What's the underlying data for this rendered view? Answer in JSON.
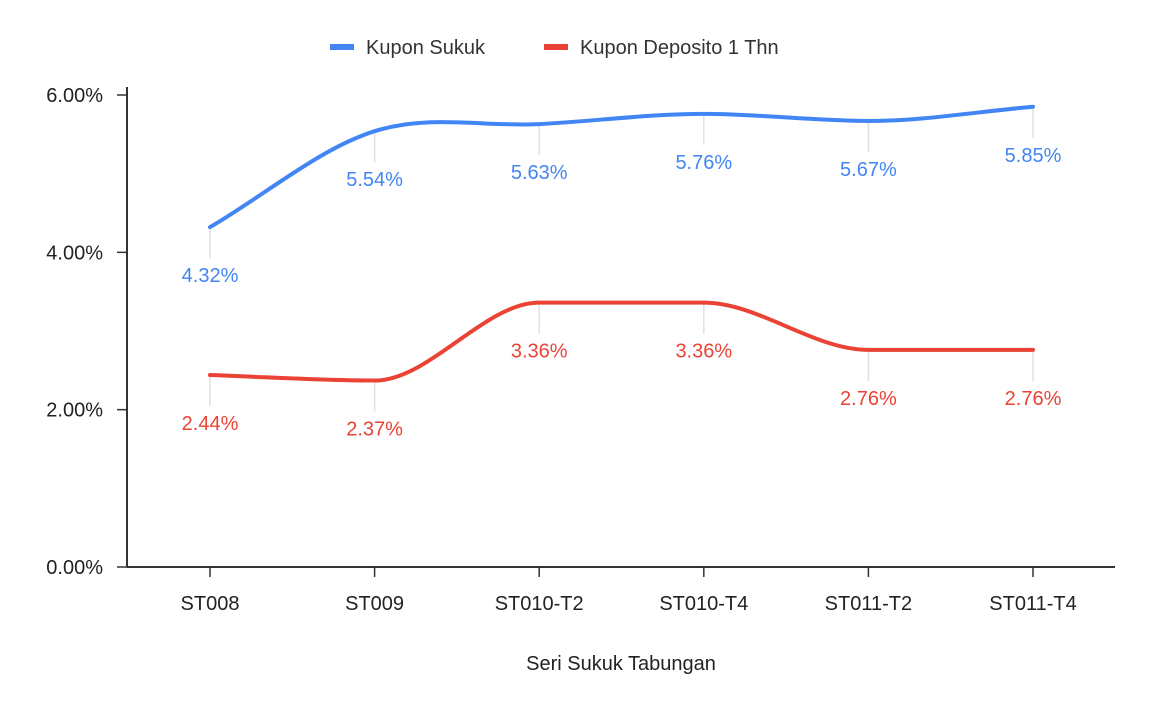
{
  "chart_data": {
    "type": "line",
    "categories": [
      "ST008",
      "ST009",
      "ST010-T2",
      "ST010-T4",
      "ST011-T2",
      "ST011-T4"
    ],
    "series": [
      {
        "name": "Kupon Sukuk",
        "color": "#4285f4",
        "values": [
          4.32,
          5.54,
          5.63,
          5.76,
          5.67,
          5.85
        ],
        "labels": [
          "4.32%",
          "5.54%",
          "5.63%",
          "5.76%",
          "5.67%",
          "5.85%"
        ]
      },
      {
        "name": "Kupon Deposito 1 Thn",
        "color": "#ea4335",
        "values": [
          2.44,
          2.37,
          3.36,
          3.36,
          2.76,
          2.76
        ],
        "labels": [
          "2.44%",
          "2.37%",
          "3.36%",
          "3.36%",
          "2.76%",
          "2.76%"
        ]
      }
    ],
    "xlabel": "Seri Sukuk Tabungan",
    "ylabel": "",
    "ylim": [
      0,
      6
    ],
    "yticks": [
      "0.00%",
      "2.00%",
      "4.00%",
      "6.00%"
    ],
    "ytick_values": [
      0,
      2,
      4,
      6
    ],
    "legend": "top",
    "grid": false,
    "smooth": true
  }
}
